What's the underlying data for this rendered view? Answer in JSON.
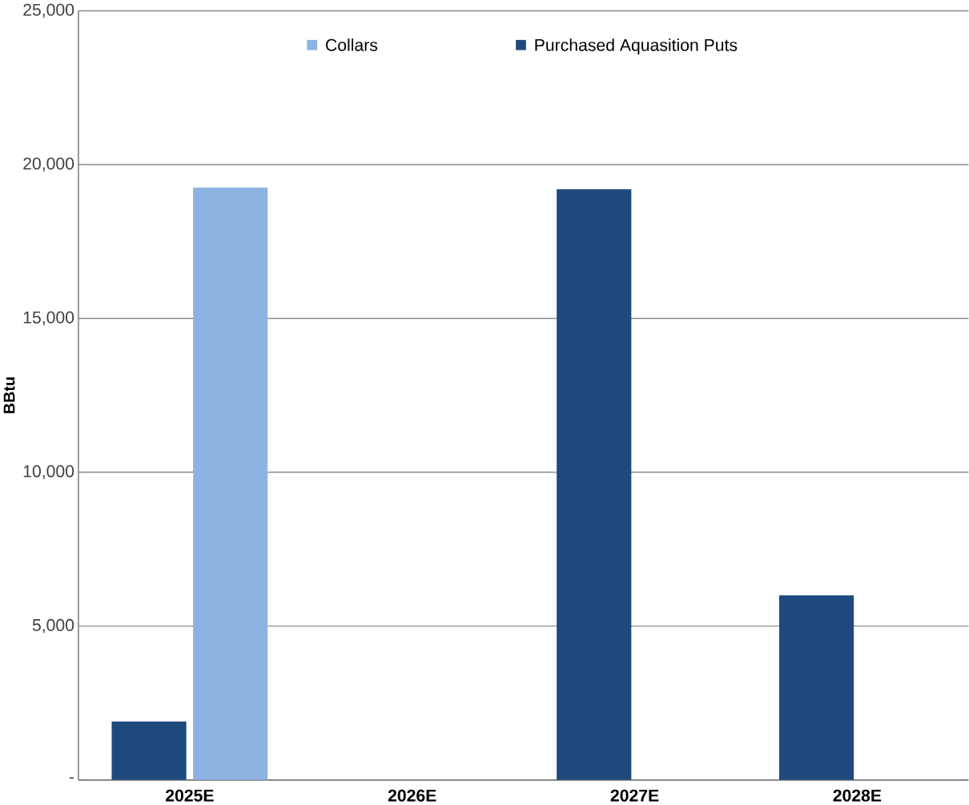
{
  "chart_data": {
    "type": "bar",
    "ylabel": "BBtu",
    "categories": [
      "2025E",
      "2026E",
      "2027E",
      "2028E"
    ],
    "series": [
      {
        "name": "Purchased Aquasition Puts",
        "color": "#1f497d",
        "values": [
          1900,
          null,
          19200,
          6000
        ]
      },
      {
        "name": "Collars",
        "color": "#8db3e2",
        "values": [
          19250,
          null,
          null,
          null
        ]
      }
    ],
    "ylim": [
      0,
      25000
    ],
    "yticks": [
      {
        "value": 0,
        "label": "-"
      },
      {
        "value": 5000,
        "label": "5,000"
      },
      {
        "value": 10000,
        "label": "10,000"
      },
      {
        "value": 15000,
        "label": "15,000"
      },
      {
        "value": 20000,
        "label": "20,000"
      },
      {
        "value": 25000,
        "label": "25,000"
      }
    ],
    "grid": "y",
    "legend": "top"
  }
}
